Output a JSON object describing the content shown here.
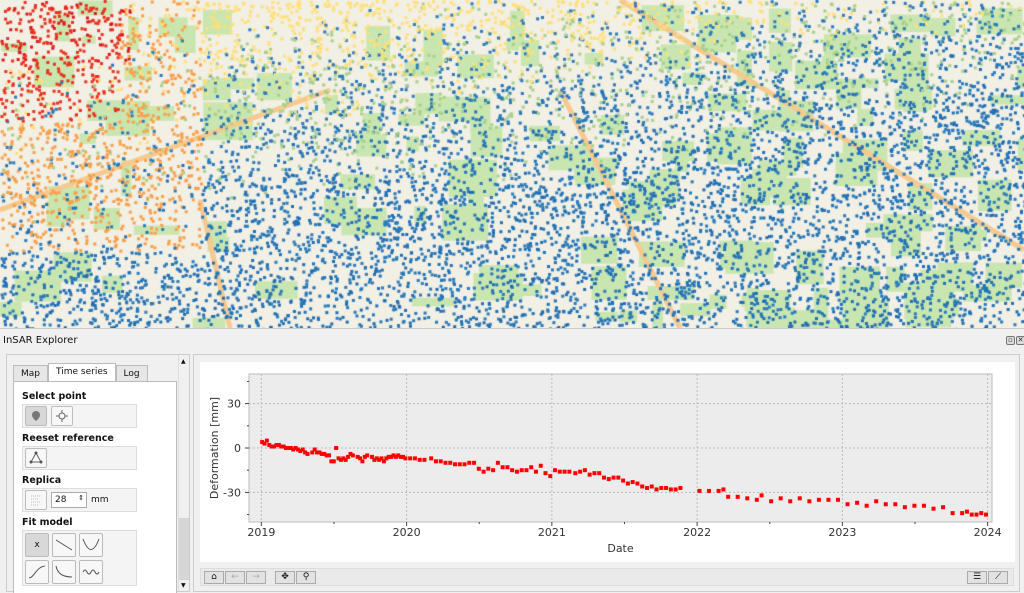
{
  "window": {
    "title": "InSAR Explorer",
    "float_icon": "float-icon",
    "close_icon": "close-icon"
  },
  "map": {
    "point_colors": [
      "#1f6fb4",
      "#2b7bba",
      "#ffe07a",
      "#f9a04a",
      "#e8331f",
      "#d7191c"
    ],
    "background": "#f2efe4",
    "park_color": "#c9e6b0"
  },
  "tabs": [
    {
      "label": "Map"
    },
    {
      "label": "Time series",
      "active": true
    },
    {
      "label": "Log"
    }
  ],
  "panel": {
    "select_point": {
      "label": "Select point",
      "icons": [
        "map-pin-icon",
        "crosshair-icon"
      ]
    },
    "reset_reference": {
      "label": "Reeset reference",
      "icons": [
        "reference-icon"
      ]
    },
    "replica": {
      "label": "Replica",
      "value": "28",
      "unit": "mm",
      "icons": [
        "replica-icon"
      ]
    },
    "fit_model": {
      "label": "Fit model",
      "options": [
        "x",
        "linear",
        "quadratic",
        "cubic",
        "exponential",
        "sinusoidal"
      ]
    }
  },
  "toolbar": {
    "left": [
      "home-icon",
      "back-icon",
      "forward-icon",
      "pan-icon",
      "zoom-icon"
    ],
    "right": [
      "configure-icon",
      "edit-axis-icon"
    ]
  },
  "chart_data": {
    "type": "scatter",
    "xlabel": "Date",
    "ylabel": "Deformation [mm]",
    "xticks": [
      "2019",
      "2020",
      "2021",
      "2022",
      "2023",
      "2024"
    ],
    "yticks": [
      30,
      0,
      -30
    ],
    "xlim": [
      "2018-12-01",
      "2024-01-12"
    ],
    "ylim": [
      -50,
      50
    ],
    "grid": true,
    "marker_color": "#ff0000",
    "points": [
      [
        "2019-01-03",
        4
      ],
      [
        "2019-01-09",
        3
      ],
      [
        "2019-01-15",
        5
      ],
      [
        "2019-01-21",
        2
      ],
      [
        "2019-01-27",
        1
      ],
      [
        "2019-02-02",
        1
      ],
      [
        "2019-02-08",
        2
      ],
      [
        "2019-02-14",
        2
      ],
      [
        "2019-02-20",
        1
      ],
      [
        "2019-02-26",
        1
      ],
      [
        "2019-03-04",
        0
      ],
      [
        "2019-03-10",
        0
      ],
      [
        "2019-03-16",
        0
      ],
      [
        "2019-03-22",
        -1
      ],
      [
        "2019-03-28",
        0
      ],
      [
        "2019-04-03",
        -1
      ],
      [
        "2019-04-09",
        -2
      ],
      [
        "2019-04-15",
        -1
      ],
      [
        "2019-04-21",
        -3
      ],
      [
        "2019-04-27",
        -4
      ],
      [
        "2019-05-09",
        -3
      ],
      [
        "2019-05-15",
        -1
      ],
      [
        "2019-05-21",
        -3
      ],
      [
        "2019-05-27",
        -3
      ],
      [
        "2019-06-02",
        -4
      ],
      [
        "2019-06-08",
        -4
      ],
      [
        "2019-06-14",
        -5
      ],
      [
        "2019-06-20",
        -5
      ],
      [
        "2019-06-26",
        -9
      ],
      [
        "2019-07-02",
        -9
      ],
      [
        "2019-07-08",
        0
      ],
      [
        "2019-07-14",
        -7
      ],
      [
        "2019-07-20",
        -8
      ],
      [
        "2019-07-26",
        -7
      ],
      [
        "2019-08-01",
        -8
      ],
      [
        "2019-08-07",
        -6
      ],
      [
        "2019-08-13",
        -4
      ],
      [
        "2019-08-19",
        -5
      ],
      [
        "2019-08-31",
        -6
      ],
      [
        "2019-09-06",
        -7
      ],
      [
        "2019-09-12",
        -9
      ],
      [
        "2019-09-18",
        -6
      ],
      [
        "2019-09-24",
        -5
      ],
      [
        "2019-10-06",
        -6
      ],
      [
        "2019-10-12",
        -8
      ],
      [
        "2019-10-18",
        -7
      ],
      [
        "2019-10-24",
        -8
      ],
      [
        "2019-10-30",
        -7
      ],
      [
        "2019-11-05",
        -9
      ],
      [
        "2019-11-11",
        -7
      ],
      [
        "2019-11-17",
        -6
      ],
      [
        "2019-11-23",
        -6
      ],
      [
        "2019-11-29",
        -5
      ],
      [
        "2019-12-05",
        -6
      ],
      [
        "2019-12-11",
        -5
      ],
      [
        "2019-12-17",
        -6
      ],
      [
        "2019-12-23",
        -6
      ],
      [
        "2019-12-29",
        -7
      ],
      [
        "2020-01-10",
        -7
      ],
      [
        "2020-01-22",
        -7
      ],
      [
        "2020-02-03",
        -8
      ],
      [
        "2020-02-15",
        -8
      ],
      [
        "2020-03-03",
        -7
      ],
      [
        "2020-03-15",
        -9
      ],
      [
        "2020-03-27",
        -9
      ],
      [
        "2020-04-08",
        -10
      ],
      [
        "2020-04-20",
        -10
      ],
      [
        "2020-05-02",
        -11
      ],
      [
        "2020-05-14",
        -11
      ],
      [
        "2020-05-26",
        -11
      ],
      [
        "2020-06-07",
        -10
      ],
      [
        "2020-06-19",
        -10
      ],
      [
        "2020-07-01",
        -14
      ],
      [
        "2020-07-13",
        -16
      ],
      [
        "2020-07-25",
        -14
      ],
      [
        "2020-08-06",
        -15
      ],
      [
        "2020-08-18",
        -10
      ],
      [
        "2020-08-30",
        -13
      ],
      [
        "2020-09-11",
        -13
      ],
      [
        "2020-09-23",
        -15
      ],
      [
        "2020-10-05",
        -16
      ],
      [
        "2020-10-17",
        -15
      ],
      [
        "2020-10-29",
        -15
      ],
      [
        "2020-11-10",
        -13
      ],
      [
        "2020-11-22",
        -16
      ],
      [
        "2020-12-04",
        -12
      ],
      [
        "2020-12-16",
        -17
      ],
      [
        "2020-12-28",
        -19
      ],
      [
        "2021-01-09",
        -15
      ],
      [
        "2021-01-21",
        -16
      ],
      [
        "2021-02-02",
        -16
      ],
      [
        "2021-02-14",
        -16
      ],
      [
        "2021-03-01",
        -17
      ],
      [
        "2021-03-13",
        -16
      ],
      [
        "2021-03-25",
        -15
      ],
      [
        "2021-04-06",
        -18
      ],
      [
        "2021-04-18",
        -17
      ],
      [
        "2021-04-30",
        -17
      ],
      [
        "2021-05-12",
        -20
      ],
      [
        "2021-05-24",
        -21
      ],
      [
        "2021-06-05",
        -20
      ],
      [
        "2021-06-17",
        -20
      ],
      [
        "2021-06-29",
        -22
      ],
      [
        "2021-07-11",
        -24
      ],
      [
        "2021-07-23",
        -23
      ],
      [
        "2021-08-04",
        -24
      ],
      [
        "2021-08-16",
        -26
      ],
      [
        "2021-08-28",
        -27
      ],
      [
        "2021-09-09",
        -26
      ],
      [
        "2021-09-21",
        -28
      ],
      [
        "2021-10-03",
        -27
      ],
      [
        "2021-10-15",
        -27
      ],
      [
        "2021-10-27",
        -28
      ],
      [
        "2021-11-08",
        -28
      ],
      [
        "2021-11-20",
        -27
      ],
      [
        "2022-01-07",
        -29
      ],
      [
        "2022-01-31",
        -29
      ],
      [
        "2022-02-24",
        -29
      ],
      [
        "2022-03-08",
        -28
      ],
      [
        "2022-03-20",
        -33
      ],
      [
        "2022-04-13",
        -33
      ],
      [
        "2022-05-07",
        -34
      ],
      [
        "2022-05-31",
        -35
      ],
      [
        "2022-06-12",
        -32
      ],
      [
        "2022-07-06",
        -36
      ],
      [
        "2022-07-30",
        -34
      ],
      [
        "2022-08-23",
        -36
      ],
      [
        "2022-09-16",
        -34
      ],
      [
        "2022-10-10",
        -36
      ],
      [
        "2022-11-03",
        -35
      ],
      [
        "2022-11-27",
        -35
      ],
      [
        "2022-12-21",
        -35
      ],
      [
        "2023-01-14",
        -38
      ],
      [
        "2023-02-07",
        -37
      ],
      [
        "2023-03-03",
        -39
      ],
      [
        "2023-03-27",
        -36
      ],
      [
        "2023-04-20",
        -38
      ],
      [
        "2023-05-14",
        -38
      ],
      [
        "2023-06-07",
        -40
      ],
      [
        "2023-07-01",
        -39
      ],
      [
        "2023-07-25",
        -39
      ],
      [
        "2023-08-18",
        -41
      ],
      [
        "2023-09-11",
        -40
      ],
      [
        "2023-10-05",
        -44
      ],
      [
        "2023-10-29",
        -44
      ],
      [
        "2023-11-22",
        -45
      ],
      [
        "2023-12-04",
        -45
      ],
      [
        "2023-12-16",
        -44
      ],
      [
        "2023-11-10",
        -43
      ],
      [
        "2023-12-28",
        -45
      ]
    ]
  }
}
